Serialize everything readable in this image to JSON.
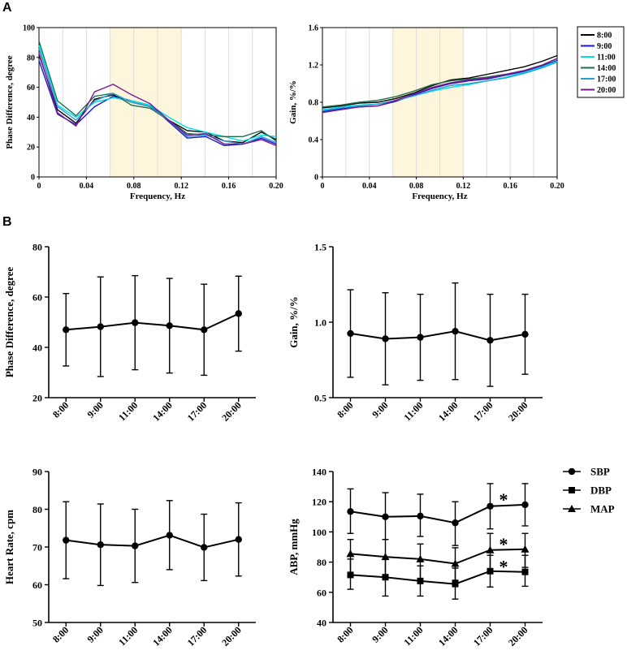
{
  "panel_labels": {
    "a": "A",
    "b": "B"
  },
  "chart_data": [
    {
      "id": "a1",
      "type": "line",
      "xlabel": "Frequency, Hz",
      "ylabel": "Phase Difference, degree",
      "xlim": [
        0,
        0.2
      ],
      "ylim": [
        0,
        100
      ],
      "xticks": [
        0,
        0.04,
        0.08,
        0.12,
        0.16,
        0.2
      ],
      "xtick_labels": [
        "0",
        "0.04",
        "0.08",
        "0.12",
        "0.16",
        "0.20"
      ],
      "yticks": [
        0,
        20,
        40,
        60,
        80,
        100
      ],
      "ytick_labels": [
        "0",
        "20",
        "40",
        "60",
        "80",
        "100"
      ],
      "shaded_band": [
        0.06,
        0.12
      ],
      "x": [
        0,
        0.0156,
        0.0312,
        0.0469,
        0.0625,
        0.0781,
        0.0938,
        0.1094,
        0.125,
        0.1406,
        0.1563,
        0.1719,
        0.1875,
        0.2
      ],
      "series": [
        {
          "name": "8:00",
          "color": "#000000",
          "values": [
            82,
            45,
            36,
            52,
            55,
            50,
            47,
            38,
            31,
            30,
            24,
            23,
            30,
            25
          ]
        },
        {
          "name": "9:00",
          "color": "#1a1acc",
          "values": [
            78,
            42,
            35,
            47,
            54,
            51,
            48,
            37,
            26,
            27,
            21,
            22,
            26,
            22
          ]
        },
        {
          "name": "11:00",
          "color": "#00e0e0",
          "values": [
            88,
            48,
            40,
            50,
            53,
            51,
            48,
            40,
            33,
            30,
            27,
            24,
            28,
            27
          ]
        },
        {
          "name": "14:00",
          "color": "#1e6e4e",
          "values": [
            91,
            51,
            41,
            54,
            56,
            48,
            46,
            38,
            29,
            28,
            27,
            27,
            31,
            24
          ]
        },
        {
          "name": "17:00",
          "color": "#2a9fd6",
          "values": [
            86,
            47,
            38,
            51,
            56,
            50,
            47,
            38,
            27,
            28,
            24,
            22,
            27,
            23
          ]
        },
        {
          "name": "20:00",
          "color": "#7a1a8a",
          "values": [
            83,
            43,
            34,
            57,
            62,
            55,
            49,
            38,
            28,
            29,
            22,
            22,
            25,
            21
          ]
        }
      ]
    },
    {
      "id": "a2",
      "type": "line",
      "xlabel": "Frequency, Hz",
      "ylabel": "Gain, %/%",
      "xlim": [
        0,
        0.2
      ],
      "ylim": [
        0,
        1.6
      ],
      "xticks": [
        0,
        0.04,
        0.08,
        0.12,
        0.16,
        0.2
      ],
      "xtick_labels": [
        "0",
        "0.04",
        "0.08",
        "0.12",
        "0.16",
        "0.20"
      ],
      "yticks": [
        0,
        0.4,
        0.8,
        1.2,
        1.6
      ],
      "ytick_labels": [
        "0",
        "0.4",
        "0.8",
        "1.2",
        "1.6"
      ],
      "shaded_band": [
        0.06,
        0.12
      ],
      "x": [
        0,
        0.0156,
        0.0312,
        0.0469,
        0.0625,
        0.0781,
        0.0938,
        0.1094,
        0.125,
        0.1406,
        0.1563,
        0.1719,
        0.1875,
        0.2
      ],
      "series": [
        {
          "name": "8:00",
          "color": "#000000",
          "values": [
            0.74,
            0.76,
            0.79,
            0.8,
            0.84,
            0.9,
            0.98,
            1.04,
            1.06,
            1.1,
            1.14,
            1.18,
            1.24,
            1.3
          ]
        },
        {
          "name": "9:00",
          "color": "#1a1acc",
          "values": [
            0.7,
            0.73,
            0.75,
            0.76,
            0.81,
            0.88,
            0.95,
            1.0,
            1.03,
            1.05,
            1.09,
            1.13,
            1.19,
            1.25
          ]
        },
        {
          "name": "11:00",
          "color": "#00e0e0",
          "values": [
            0.72,
            0.75,
            0.77,
            0.78,
            0.82,
            0.87,
            0.92,
            0.96,
            0.99,
            1.03,
            1.07,
            1.12,
            1.18,
            1.24
          ]
        },
        {
          "name": "14:00",
          "color": "#1e6e4e",
          "values": [
            0.75,
            0.77,
            0.8,
            0.82,
            0.86,
            0.92,
            0.99,
            1.03,
            1.05,
            1.07,
            1.1,
            1.14,
            1.2,
            1.27
          ]
        },
        {
          "name": "17:00",
          "color": "#2a9fd6",
          "values": [
            0.71,
            0.74,
            0.76,
            0.78,
            0.82,
            0.87,
            0.93,
            0.98,
            1.0,
            1.03,
            1.06,
            1.11,
            1.17,
            1.23
          ]
        },
        {
          "name": "20:00",
          "color": "#7a1a8a",
          "values": [
            0.69,
            0.72,
            0.75,
            0.76,
            0.82,
            0.89,
            0.96,
            1.01,
            1.04,
            1.06,
            1.1,
            1.14,
            1.2,
            1.27
          ]
        }
      ]
    },
    {
      "id": "b1",
      "type": "line",
      "ylabel": "Phase Difference, degree",
      "categories": [
        "8:00",
        "9:00",
        "11:00",
        "14:00",
        "17:00",
        "20:00"
      ],
      "ylim": [
        20,
        80
      ],
      "yticks": [
        20,
        40,
        60,
        80
      ],
      "ytick_labels": [
        "20",
        "40",
        "60",
        "80"
      ],
      "series": [
        {
          "name": "Phase Difference",
          "marker": "circle",
          "values": [
            47,
            48.2,
            49.8,
            48.6,
            47,
            53.4
          ],
          "lower": [
            32.6,
            28.4,
            31.1,
            29.8,
            28.9,
            38.5
          ],
          "upper": [
            61.4,
            68,
            68.5,
            67.4,
            65.1,
            68.3
          ]
        }
      ]
    },
    {
      "id": "b2",
      "type": "line",
      "ylabel": "Gain, %/%",
      "categories": [
        "8:00",
        "9:00",
        "11:00",
        "14:00",
        "17:00",
        "20:00"
      ],
      "ylim": [
        0.5,
        1.5
      ],
      "yticks": [
        0.5,
        1.0,
        1.5
      ],
      "ytick_labels": [
        "0.5",
        "1.0",
        "1.5"
      ],
      "series": [
        {
          "name": "Gain",
          "marker": "circle",
          "values": [
            0.925,
            0.89,
            0.9,
            0.94,
            0.88,
            0.92
          ],
          "lower": [
            0.635,
            0.585,
            0.615,
            0.62,
            0.575,
            0.655
          ],
          "upper": [
            1.215,
            1.195,
            1.185,
            1.26,
            1.185,
            1.185
          ]
        }
      ]
    },
    {
      "id": "b3",
      "type": "line",
      "ylabel": "Heart Rate, cpm",
      "categories": [
        "8:00",
        "9:00",
        "11:00",
        "14:00",
        "17:00",
        "20:00"
      ],
      "ylim": [
        50,
        90
      ],
      "yticks": [
        50,
        60,
        70,
        80,
        90
      ],
      "ytick_labels": [
        "50",
        "60",
        "70",
        "80",
        "90"
      ],
      "series": [
        {
          "name": "Heart Rate",
          "marker": "circle",
          "values": [
            71.8,
            70.6,
            70.3,
            73.1,
            69.9,
            72
          ],
          "lower": [
            61.6,
            59.8,
            60.6,
            64,
            61.1,
            62.3
          ],
          "upper": [
            82,
            81.4,
            80,
            82.3,
            78.7,
            81.7
          ]
        }
      ]
    },
    {
      "id": "b4",
      "type": "line",
      "ylabel": "ABP, mmHg",
      "categories": [
        "8:00",
        "9:00",
        "11:00",
        "14:00",
        "17:00",
        "20:00"
      ],
      "ylim": [
        40,
        140
      ],
      "yticks": [
        40,
        60,
        80,
        100,
        120,
        140
      ],
      "ytick_labels": [
        "40",
        "60",
        "80",
        "100",
        "120",
        "140"
      ],
      "series": [
        {
          "name": "SBP",
          "marker": "circle",
          "values": [
            113.5,
            110,
            110.5,
            106,
            117,
            118
          ],
          "lower": [
            99,
            95,
            97,
            91,
            102,
            104
          ],
          "upper": [
            128.5,
            126,
            125,
            120,
            132,
            132
          ]
        },
        {
          "name": "DBP",
          "marker": "square",
          "values": [
            71.5,
            70,
            67.5,
            65.5,
            74,
            73.5
          ],
          "lower": [
            62,
            57.5,
            57.5,
            55.5,
            63.5,
            64
          ],
          "upper": [
            82,
            82,
            77.5,
            76,
            84.5,
            84.5
          ]
        },
        {
          "name": "MAP",
          "marker": "triangle",
          "values": [
            85.5,
            83.5,
            82,
            79,
            88,
            88.5
          ],
          "lower": [
            73,
            70,
            68.5,
            68,
            75,
            76.5
          ],
          "upper": [
            95,
            95,
            92,
            89.5,
            99,
            99
          ]
        }
      ],
      "annotations": [
        "*",
        "*",
        "*"
      ]
    }
  ]
}
